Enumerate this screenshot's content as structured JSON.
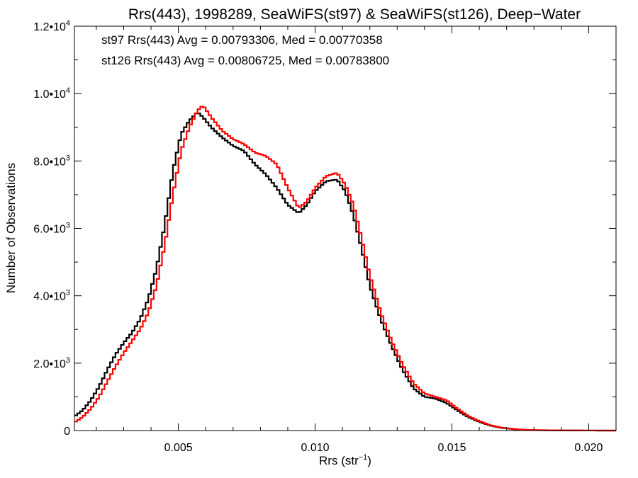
{
  "chart_data": {
    "type": "line",
    "title": "Rrs(443), 1998289, SeaWiFS(st97) & SeaWiFS(st126), Deep−Water",
    "xlabel_main": "Rrs (str",
    "xlabel_sup": "−1",
    "xlabel_end": ")",
    "ylabel": "Number of Observations",
    "xlim": [
      0.0012,
      0.021
    ],
    "ylim": [
      0,
      12000
    ],
    "x_tick_values": [
      0.005,
      0.01,
      0.015,
      0.02
    ],
    "x_tick_labels": [
      "0.005",
      "0.010",
      "0.015",
      "0.020"
    ],
    "y_ticks": [
      {
        "value": 0,
        "mant": "0",
        "exp": ""
      },
      {
        "value": 2000,
        "mant": "2.0•10",
        "exp": "3"
      },
      {
        "value": 4000,
        "mant": "4.0•10",
        "exp": "3"
      },
      {
        "value": 6000,
        "mant": "6.0•10",
        "exp": "3"
      },
      {
        "value": 8000,
        "mant": "8.0•10",
        "exp": "3"
      },
      {
        "value": 10000,
        "mant": "1.0•10",
        "exp": "4"
      },
      {
        "value": 12000,
        "mant": "1.2•10",
        "exp": "4"
      }
    ],
    "annotations": [
      {
        "text": "st97 Rrs(443) Avg = 0.00793306, Med = 0.00770358",
        "color": "#000000"
      },
      {
        "text": "st126 Rrs(443) Avg = 0.00806725, Med = 0.00783800",
        "color": "#ff0000"
      }
    ],
    "series": [
      {
        "color": "#000000",
        "points": [
          [
            0.0012,
            420
          ],
          [
            0.0015,
            600
          ],
          [
            0.0018,
            900
          ],
          [
            0.0021,
            1300
          ],
          [
            0.0024,
            1800
          ],
          [
            0.0027,
            2250
          ],
          [
            0.003,
            2600
          ],
          [
            0.0033,
            2900
          ],
          [
            0.0036,
            3300
          ],
          [
            0.0039,
            3900
          ],
          [
            0.0042,
            4800
          ],
          [
            0.0045,
            6100
          ],
          [
            0.0048,
            7700
          ],
          [
            0.0051,
            8800
          ],
          [
            0.0054,
            9200
          ],
          [
            0.0057,
            9450
          ],
          [
            0.0059,
            9300
          ],
          [
            0.0062,
            9000
          ],
          [
            0.0066,
            8700
          ],
          [
            0.007,
            8450
          ],
          [
            0.0074,
            8300
          ],
          [
            0.0078,
            7900
          ],
          [
            0.0082,
            7600
          ],
          [
            0.0086,
            7200
          ],
          [
            0.009,
            6700
          ],
          [
            0.0094,
            6450
          ],
          [
            0.0097,
            6700
          ],
          [
            0.01,
            7100
          ],
          [
            0.0104,
            7400
          ],
          [
            0.0108,
            7450
          ],
          [
            0.0111,
            7100
          ],
          [
            0.0114,
            6400
          ],
          [
            0.0117,
            5400
          ],
          [
            0.012,
            4300
          ],
          [
            0.0124,
            3300
          ],
          [
            0.0128,
            2500
          ],
          [
            0.0132,
            1800
          ],
          [
            0.0136,
            1250
          ],
          [
            0.014,
            1000
          ],
          [
            0.0144,
            950
          ],
          [
            0.0148,
            820
          ],
          [
            0.0152,
            600
          ],
          [
            0.0156,
            400
          ],
          [
            0.016,
            260
          ],
          [
            0.0164,
            150
          ],
          [
            0.0168,
            80
          ],
          [
            0.0174,
            30
          ],
          [
            0.018,
            12
          ],
          [
            0.019,
            4
          ],
          [
            0.02,
            1
          ],
          [
            0.021,
            0
          ]
        ]
      },
      {
        "color": "#ff0000",
        "points": [
          [
            0.0012,
            240
          ],
          [
            0.0015,
            400
          ],
          [
            0.0018,
            650
          ],
          [
            0.0021,
            1000
          ],
          [
            0.0024,
            1450
          ],
          [
            0.0027,
            1900
          ],
          [
            0.003,
            2300
          ],
          [
            0.0033,
            2650
          ],
          [
            0.0036,
            3000
          ],
          [
            0.0039,
            3500
          ],
          [
            0.0042,
            4300
          ],
          [
            0.0045,
            5500
          ],
          [
            0.0048,
            7000
          ],
          [
            0.0051,
            8300
          ],
          [
            0.0054,
            9000
          ],
          [
            0.0057,
            9500
          ],
          [
            0.0059,
            9650
          ],
          [
            0.0062,
            9300
          ],
          [
            0.0066,
            8900
          ],
          [
            0.007,
            8650
          ],
          [
            0.0074,
            8500
          ],
          [
            0.0078,
            8250
          ],
          [
            0.0082,
            8150
          ],
          [
            0.0086,
            7900
          ],
          [
            0.009,
            7200
          ],
          [
            0.0094,
            6600
          ],
          [
            0.0097,
            6800
          ],
          [
            0.01,
            7200
          ],
          [
            0.0104,
            7550
          ],
          [
            0.0108,
            7650
          ],
          [
            0.0111,
            7300
          ],
          [
            0.0114,
            6700
          ],
          [
            0.0117,
            5700
          ],
          [
            0.012,
            4600
          ],
          [
            0.0124,
            3500
          ],
          [
            0.0128,
            2650
          ],
          [
            0.0132,
            1950
          ],
          [
            0.0136,
            1400
          ],
          [
            0.014,
            1100
          ],
          [
            0.0144,
            1000
          ],
          [
            0.0148,
            900
          ],
          [
            0.0152,
            650
          ],
          [
            0.0156,
            430
          ],
          [
            0.016,
            280
          ],
          [
            0.0164,
            160
          ],
          [
            0.0168,
            90
          ],
          [
            0.0174,
            35
          ],
          [
            0.018,
            14
          ],
          [
            0.019,
            5
          ],
          [
            0.02,
            1
          ],
          [
            0.021,
            0
          ]
        ]
      }
    ]
  }
}
